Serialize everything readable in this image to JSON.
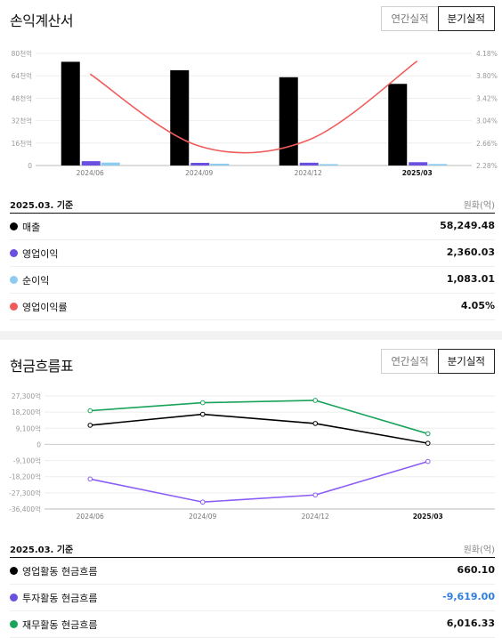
{
  "income": {
    "title": "손익계산서",
    "toggle": {
      "annual": "연간실적",
      "quarterly": "분기실적"
    },
    "chart_data": {
      "type": "bar",
      "categories": [
        "2024/06",
        "2024/09",
        "2024/12",
        "2025/03"
      ],
      "bold_category": "2025/03",
      "left_axis_ticks": [
        "80천억",
        "64천억",
        "48천억",
        "32천억",
        "16천억",
        "0"
      ],
      "right_axis_ticks": [
        "4.18%",
        "3.80%",
        "3.42%",
        "3.04%",
        "2.66%",
        "2.28%"
      ],
      "ylim_left": [
        0,
        80000
      ],
      "ylim_right": [
        2.28,
        4.18
      ],
      "series": [
        {
          "name": "매출",
          "kind": "bar",
          "color": "#000000",
          "values": [
            74000,
            68000,
            63000,
            58249.48
          ]
        },
        {
          "name": "영업이익",
          "kind": "bar",
          "color": "#6a4fe0",
          "values": [
            3100,
            1900,
            2000,
            2360.03
          ]
        },
        {
          "name": "순이익",
          "kind": "bar",
          "color": "#8ecbf0",
          "values": [
            2100,
            1300,
            1000,
            1083.01
          ]
        },
        {
          "name": "영업이익률",
          "kind": "line",
          "color": "#f05b5b",
          "axis": "right",
          "values": [
            3.83,
            2.61,
            2.71,
            4.05
          ]
        }
      ]
    },
    "table": {
      "basis": "2025.03. 기준",
      "unit": "원화(억)",
      "rows": [
        {
          "label": "매출",
          "value": "58,249.48",
          "color": "#000000"
        },
        {
          "label": "영업이익",
          "value": "2,360.03",
          "color": "#6a4fe0"
        },
        {
          "label": "순이익",
          "value": "1,083.01",
          "color": "#8ecbf0"
        },
        {
          "label": "영업이익률",
          "value": "4.05%",
          "color": "#f05b5b"
        }
      ]
    }
  },
  "cash": {
    "title": "현금흐름표",
    "toggle": {
      "annual": "연간실적",
      "quarterly": "분기실적"
    },
    "chart_data": {
      "type": "line",
      "categories": [
        "2024/06",
        "2024/09",
        "2024/12",
        "2025/03"
      ],
      "bold_category": "2025/03",
      "y_ticks": [
        "27,300억",
        "18,200억",
        "9,100억",
        "0",
        "-9,100억",
        "-18,200억",
        "-27,300억",
        "-36,400억"
      ],
      "y_tick_values": [
        27300,
        18200,
        9100,
        0,
        -9100,
        -18200,
        -27300,
        -36400
      ],
      "ylim": [
        -36400,
        27300
      ],
      "series": [
        {
          "name": "영업활동 현금흐름",
          "color": "#000000",
          "values": [
            10800,
            17000,
            11800,
            660.1
          ]
        },
        {
          "name": "투자활동 현금흐름",
          "color": "#8b5cf6",
          "values": [
            -19500,
            -32500,
            -28500,
            -9619.0
          ]
        },
        {
          "name": "재무활동 현금흐름",
          "color": "#1aa35a",
          "values": [
            19000,
            23500,
            24800,
            6016.33
          ]
        }
      ]
    },
    "table": {
      "basis": "2025.03. 기준",
      "unit": "원화(억)",
      "rows": [
        {
          "label": "영업활동 현금흐름",
          "value": "660.10",
          "color": "#000000",
          "value_color": "#111111"
        },
        {
          "label": "투자활동 현금흐름",
          "value": "-9,619.00",
          "color": "#6a4fe0",
          "value_color": "#2f7fe0"
        },
        {
          "label": "재무활동 현금흐름",
          "value": "6,016.33",
          "color": "#1aa35a",
          "value_color": "#111111"
        }
      ]
    }
  }
}
